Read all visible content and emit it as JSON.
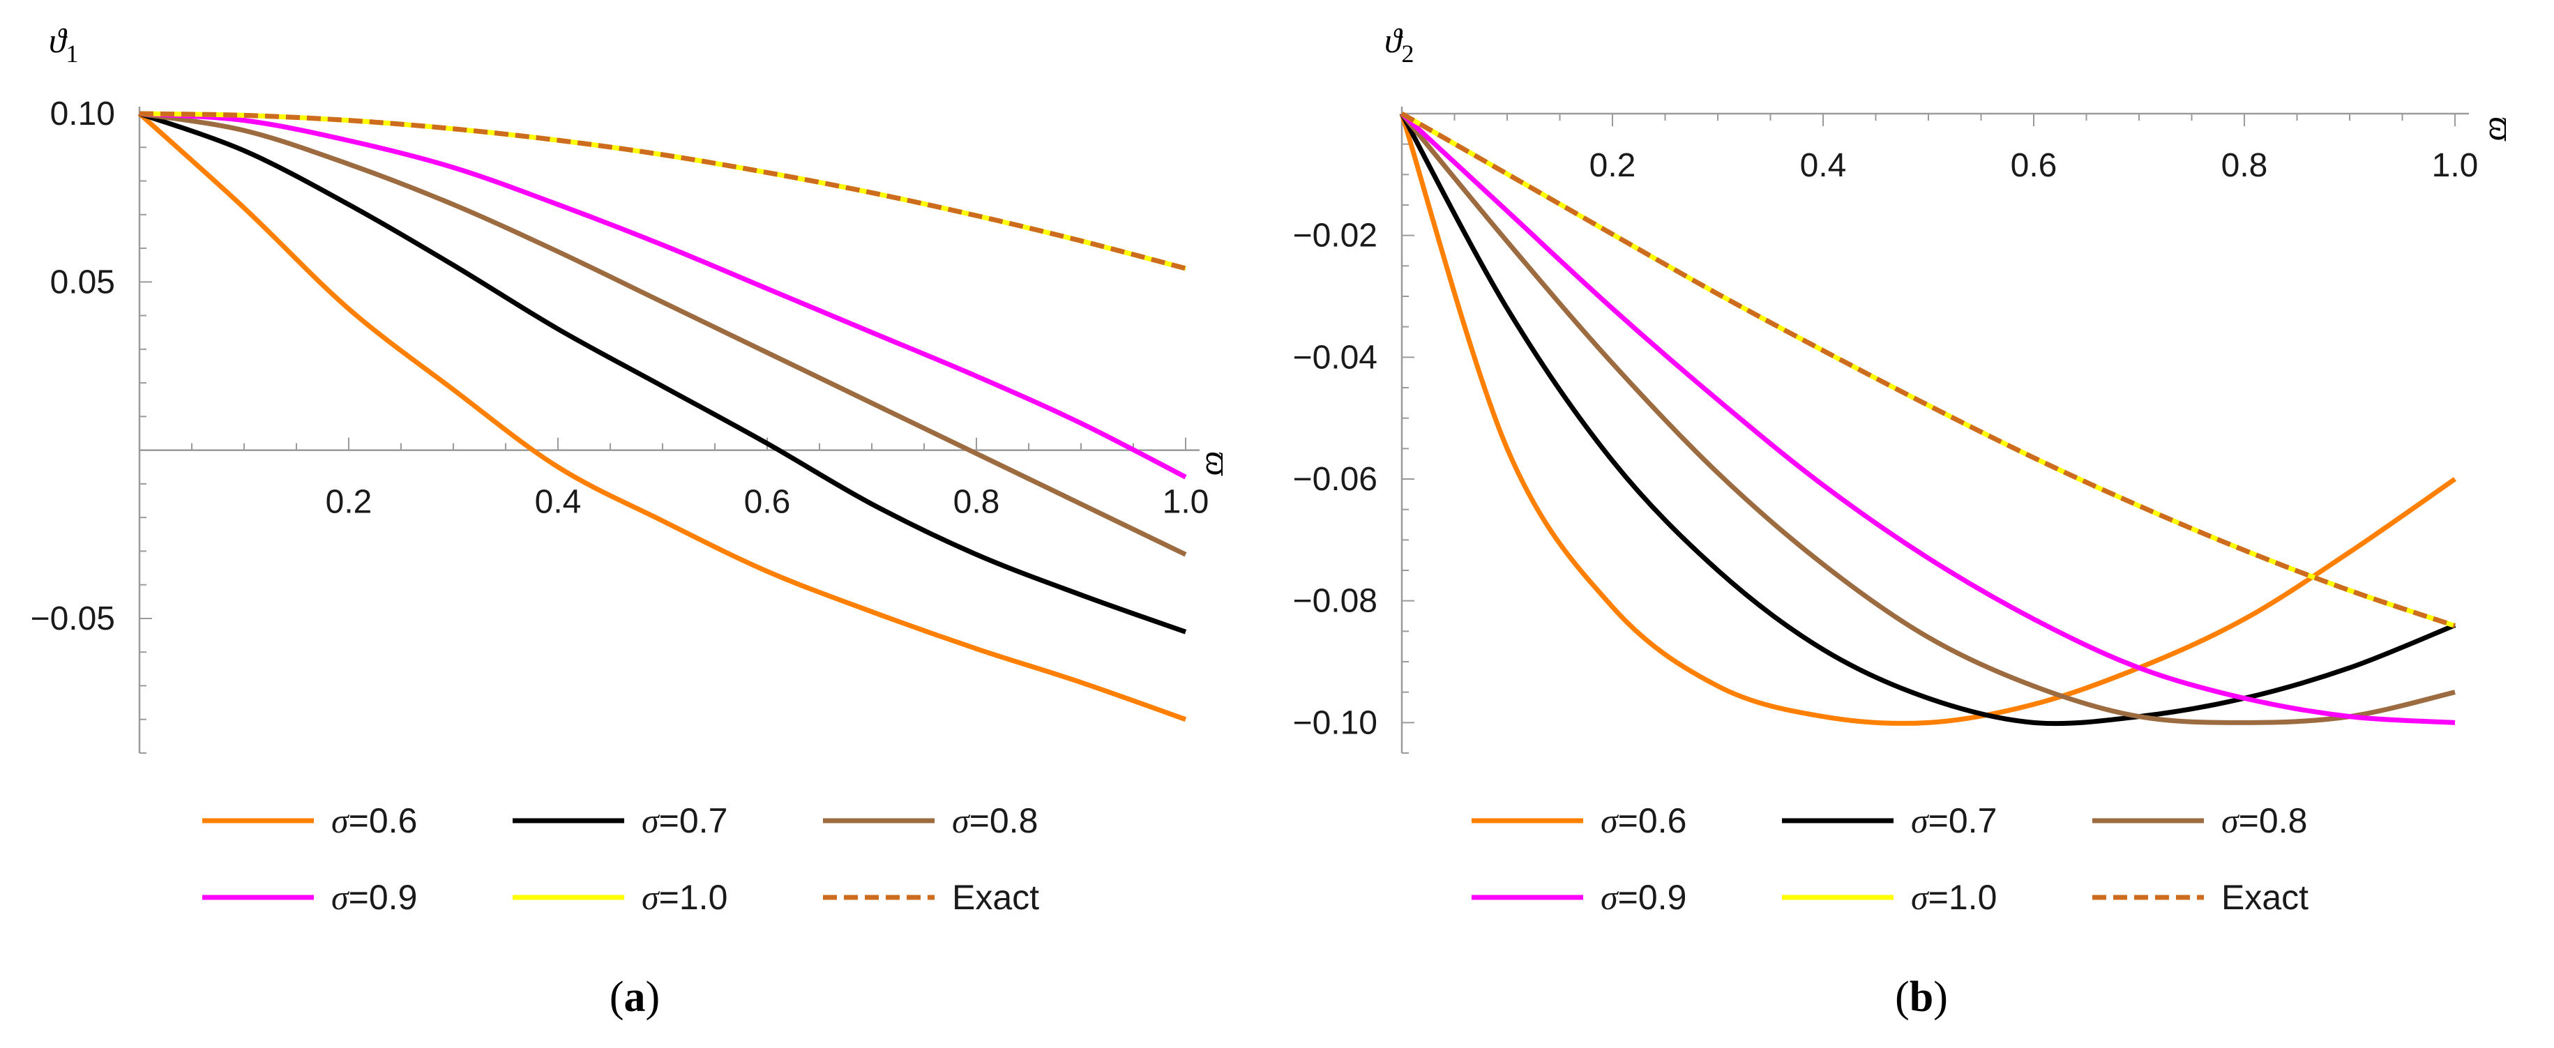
{
  "chart_data": [
    {
      "panel_label": "(a)",
      "type": "line",
      "xlabel": "ϖ",
      "ylabel": "ϑ1",
      "xlim": [
        0,
        1.0
      ],
      "ylim": [
        -0.09,
        0.1
      ],
      "x_ticks": [
        "0.2",
        "0.4",
        "0.6",
        "0.8",
        "1.0"
      ],
      "y_ticks": [
        "-0.05",
        "0.05",
        "0.10"
      ],
      "x": [
        0,
        0.1,
        0.2,
        0.3,
        0.4,
        0.5,
        0.6,
        0.7,
        0.8,
        0.9,
        1.0
      ],
      "series": [
        {
          "name": "σ=0.6",
          "color": "#ff7f00",
          "dash": "solid",
          "values": [
            0.1,
            0.072,
            0.042,
            0.018,
            -0.005,
            -0.021,
            -0.036,
            -0.048,
            -0.059,
            -0.069,
            -0.08
          ]
        },
        {
          "name": "σ=0.7",
          "color": "#000000",
          "dash": "solid",
          "values": [
            0.1,
            0.089,
            0.073,
            0.055,
            0.036,
            0.019,
            0.002,
            -0.016,
            -0.031,
            -0.043,
            -0.054
          ]
        },
        {
          "name": "σ=0.8",
          "color": "#9c6b3f",
          "dash": "solid",
          "values": [
            0.1,
            0.095,
            0.085,
            0.073,
            0.059,
            0.044,
            0.029,
            0.014,
            -0.001,
            -0.016,
            -0.031
          ]
        },
        {
          "name": "σ=0.9",
          "color": "#ff00ff",
          "dash": "solid",
          "values": [
            0.1,
            0.098,
            0.092,
            0.084,
            0.073,
            0.061,
            0.048,
            0.035,
            0.022,
            0.008,
            -0.008
          ]
        },
        {
          "name": "σ=1.0",
          "color": "#ffff00",
          "dash": "solid",
          "values": [
            0.1,
            0.0995,
            0.098,
            0.0955,
            0.0921,
            0.0878,
            0.0825,
            0.0765,
            0.0697,
            0.0622,
            0.054
          ]
        },
        {
          "name": "Exact",
          "color": "#cd6b1e",
          "dash": "dashed",
          "values": [
            0.1,
            0.0995,
            0.098,
            0.0955,
            0.0921,
            0.0878,
            0.0825,
            0.0765,
            0.0697,
            0.0622,
            0.054
          ]
        }
      ]
    },
    {
      "panel_label": "(b)",
      "type": "line",
      "xlabel": "ϖ",
      "ylabel": "ϑ2",
      "xlim": [
        0,
        1.0
      ],
      "ylim": [
        -0.105,
        0.0
      ],
      "x_ticks": [
        "0.2",
        "0.4",
        "0.6",
        "0.8",
        "1.0"
      ],
      "y_ticks": [
        "-0.02",
        "-0.04",
        "-0.06",
        "-0.08",
        "-0.10"
      ],
      "x": [
        0,
        0.1,
        0.2,
        0.3,
        0.4,
        0.5,
        0.6,
        0.7,
        0.8,
        0.9,
        1.0
      ],
      "series": [
        {
          "name": "σ=0.6",
          "color": "#ff7f00",
          "dash": "solid",
          "values": [
            0.0,
            -0.055,
            -0.081,
            -0.094,
            -0.099,
            -0.1,
            -0.097,
            -0.091,
            -0.083,
            -0.072,
            -0.06
          ]
        },
        {
          "name": "σ=0.7",
          "color": "#000000",
          "dash": "solid",
          "values": [
            0.0,
            -0.032,
            -0.057,
            -0.075,
            -0.088,
            -0.096,
            -0.1,
            -0.099,
            -0.096,
            -0.091,
            -0.084
          ]
        },
        {
          "name": "σ=0.8",
          "color": "#9c6b3f",
          "dash": "solid",
          "values": [
            0.0,
            -0.021,
            -0.041,
            -0.059,
            -0.074,
            -0.086,
            -0.094,
            -0.099,
            -0.1,
            -0.099,
            -0.095
          ]
        },
        {
          "name": "σ=0.9",
          "color": "#ff00ff",
          "dash": "solid",
          "values": [
            0.0,
            -0.016,
            -0.032,
            -0.047,
            -0.061,
            -0.073,
            -0.083,
            -0.091,
            -0.096,
            -0.099,
            -0.1
          ]
        },
        {
          "name": "σ=1.0",
          "color": "#ffff00",
          "dash": "solid",
          "values": [
            0.0,
            -0.0099,
            -0.0198,
            -0.0296,
            -0.0389,
            -0.0479,
            -0.0565,
            -0.0644,
            -0.0717,
            -0.0783,
            -0.0841
          ]
        },
        {
          "name": "Exact",
          "color": "#cd6b1e",
          "dash": "dashed",
          "values": [
            0.0,
            -0.0099,
            -0.0198,
            -0.0296,
            -0.0389,
            -0.0479,
            -0.0565,
            -0.0644,
            -0.0717,
            -0.0783,
            -0.0841
          ]
        }
      ]
    }
  ]
}
